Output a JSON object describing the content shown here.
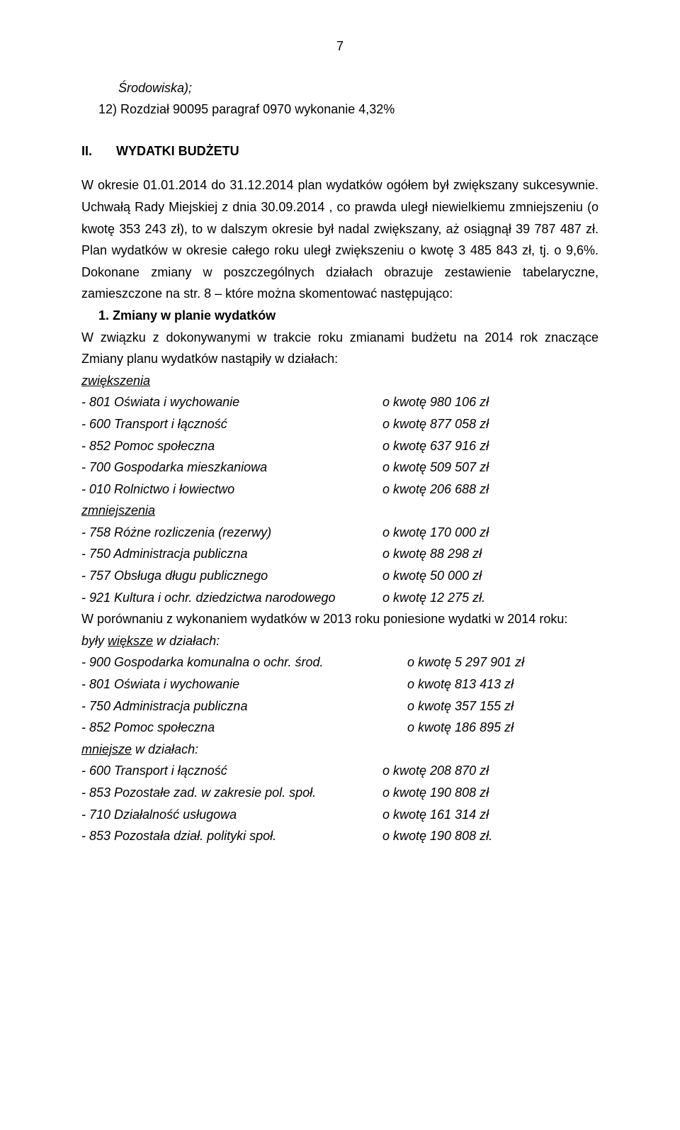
{
  "page_number": "7",
  "hanging_line": "Środowiska);",
  "list_item_12": "12) Rozdział 90095 paragraf 0970 wykonanie 4,32%",
  "section2_num": "II.",
  "section2_title": "WYDATKI BUDŻETU",
  "para1_a": "W okresie 01.01.2014 do 31.12.2014 plan wydatków ogółem był zwiększany sukcesywnie. Uchwałą Rady Miejskiej z dnia 30.09.2014 , co prawda uległ niewielkiemu zmniejszeniu (o kwotę 353 243 zł), to w dalszym okresie był nadal zwiększany, aż osiągnął 39 787 487 zł. Plan wydatków w okresie całego roku uległ zwiększeniu o kwotę 3 485 843 zł, tj. o 9,6%. Dokonane zmiany w poszczególnych działach obrazuje zestawienie tabelaryczne, zamieszczone na str. 8 – które można skomentować następująco:",
  "list_1_num": "1. ",
  "list_1_title": "Zmiany w planie wydatków",
  "para2": "W związku z dokonywanymi w trakcie roku zmianami budżetu na 2014 rok znaczące Zmiany planu wydatków nastąpiły w działach:",
  "zwiekszenia_label": "zwiększenia",
  "zw_rows": [
    {
      "l": "- 801 Oświata i wychowanie",
      "r": "o kwotę 980 106 zł"
    },
    {
      "l": "- 600 Transport i łączność",
      "r": "o kwotę 877 058 zł"
    },
    {
      "l": "- 852 Pomoc społeczna",
      "r": "o kwotę 637 916 zł"
    },
    {
      "l": "- 700 Gospodarka mieszkaniowa",
      "r": "o kwotę 509 507 zł"
    },
    {
      "l": "- 010 Rolnictwo i łowiectwo",
      "r": "o kwotę 206 688 zł"
    }
  ],
  "zmniejszenia_label": "zmniejszenia",
  "zm_rows": [
    {
      "l": "- 758 Różne rozliczenia (rezerwy)",
      "r": "o kwotę 170 000 zł"
    },
    {
      "l": "- 750 Administracja publiczna",
      "r": "o kwotę  88 298 zł"
    },
    {
      "l": "- 757 Obsługa długu publicznego",
      "r": "o kwotę  50 000 zł"
    },
    {
      "l": "- 921 Kultura i ochr. dziedzictwa narodowego",
      "r": "o kwotę  12 275 zł."
    }
  ],
  "para3": "W porównaniu z wykonaniem wydatków w 2013 roku poniesione wydatki w 2014 roku:",
  "byly_a": "były ",
  "byly_b": "większe",
  "byly_c": " w działach:",
  "wieksze_rows": [
    {
      "l": "- 900 Gospodarka komunalna o ochr. środ.",
      "r": "o kwotę 5 297 901 zł"
    },
    {
      "l": "- 801 Oświata i wychowanie",
      "r": "o kwotę   813 413 zł"
    },
    {
      "l": "- 750 Administracja publiczna",
      "r": "o kwotę   357 155 zł"
    },
    {
      "l": "- 852 Pomoc społeczna",
      "r": "o kwotę   186 895 zł"
    }
  ],
  "mniejsze_a": "mniejsze",
  "mniejsze_b": " w działach:",
  "mniejsze_rows": [
    {
      "l": "- 600 Transport i łączność",
      "r": "o kwotę 208 870 zł"
    },
    {
      "l": "- 853 Pozostałe zad. w zakresie pol. społ.",
      "r": "o kwotę 190 808 zł"
    },
    {
      "l": "- 710 Działalność usługowa",
      "r": "o kwotę 161 314 zł"
    },
    {
      "l": "- 853 Pozostała dział. polityki społ.",
      "r": "o kwotę 190 808 zł."
    }
  ]
}
